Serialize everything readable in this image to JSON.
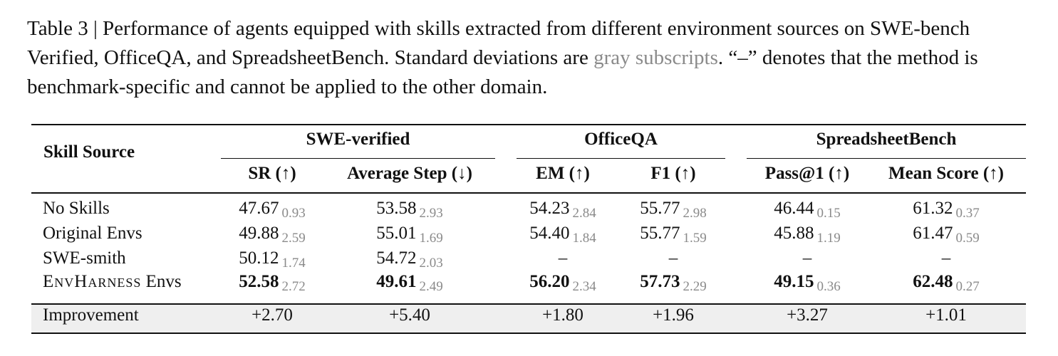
{
  "caption": {
    "before": "Table 3 | Performance of agents equipped with skills extracted from different environment sources on SWE-bench Verified, OfficeQA, and SpreadsheetBench. Standard deviations are ",
    "gray": "gray subscripts",
    "after": ". “–” denotes that the method is benchmark-specific and cannot be applied to the other domain."
  },
  "table": {
    "corner": "Skill Source",
    "groups": [
      "SWE-verified",
      "OfficeQA",
      "SpreadsheetBench"
    ],
    "columns": [
      "SR (↑)",
      "Average Step (↓)",
      "EM (↑)",
      "F1 (↑)",
      "Pass@1 (↑)",
      "Mean Score (↑)"
    ],
    "rows": [
      {
        "name": "No Skills",
        "cells": [
          {
            "value": "47.67",
            "std": "0.93"
          },
          {
            "value": "53.58",
            "std": "2.93"
          },
          {
            "value": "54.23",
            "std": "2.84"
          },
          {
            "value": "55.77",
            "std": "2.98"
          },
          {
            "value": "46.44",
            "std": "0.15"
          },
          {
            "value": "61.32",
            "std": "0.37"
          }
        ]
      },
      {
        "name": "Original Envs",
        "cells": [
          {
            "value": "49.88",
            "std": "2.59"
          },
          {
            "value": "55.01",
            "std": "1.69"
          },
          {
            "value": "54.40",
            "std": "1.84"
          },
          {
            "value": "55.77",
            "std": "1.59"
          },
          {
            "value": "45.88",
            "std": "1.19"
          },
          {
            "value": "61.47",
            "std": "0.59"
          }
        ]
      },
      {
        "name": "SWE-smith",
        "cells": [
          {
            "value": "50.12",
            "std": "1.74"
          },
          {
            "value": "54.72",
            "std": "2.03"
          },
          {
            "value": "–"
          },
          {
            "value": "–"
          },
          {
            "value": "–"
          },
          {
            "value": "–"
          }
        ]
      },
      {
        "name": "EnvHarness",
        "name_suffix": "Envs",
        "bold": true,
        "cells": [
          {
            "value": "52.58",
            "std": "2.72"
          },
          {
            "value": "49.61",
            "std": "2.49"
          },
          {
            "value": "56.20",
            "std": "2.34"
          },
          {
            "value": "57.73",
            "std": "2.29"
          },
          {
            "value": "49.15",
            "std": "0.36"
          },
          {
            "value": "62.48",
            "std": "0.27"
          }
        ]
      }
    ],
    "improvement": {
      "name": "Improvement",
      "values": [
        "+2.70",
        "+5.40",
        "+1.80",
        "+1.96",
        "+3.27",
        "+1.01"
      ]
    }
  }
}
